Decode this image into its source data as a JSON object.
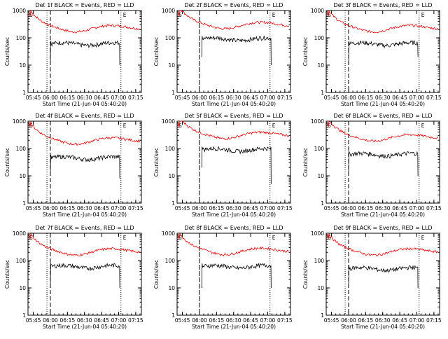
{
  "figure": {
    "xlabel": "Start Time (21-Jun-04 05:40:20)",
    "ylabel": "Counts/sec",
    "x_tick_labels": [
      "05:45",
      "06:00",
      "06:15",
      "06:30",
      "06:45",
      "07:00",
      "07:15"
    ],
    "y_tick_labels": [
      "1",
      "10",
      "100",
      "1000"
    ],
    "marker_S": "S",
    "marker_E": "E",
    "series_colors": {
      "events": "#000000",
      "lld": "#e00000"
    }
  },
  "chart_data": [
    {
      "type": "line",
      "title": "Det 1f BLACK = Events, RED = LLD",
      "xlabel": "Start Time (21-Jun-04 05:40:20)",
      "ylabel": "Counts/sec",
      "yscale": "log",
      "ylim": [
        1,
        1000
      ],
      "xlim": [
        "05:40:20",
        "07:20"
      ],
      "x_ticks": [
        "05:45",
        "06:00",
        "06:15",
        "06:30",
        "06:45",
        "07:00",
        "07:15"
      ],
      "y_ticks": [
        1,
        10,
        100,
        1000
      ],
      "markers": {
        "S": "05:40:20",
        "dashed": "06:00",
        "dotted_left": "05:57",
        "dotted_right": "07:02",
        "E": "07:02"
      },
      "series": [
        {
          "values": {
            "start": "06:00",
            "end": "07:01",
            "level": 60,
            "spike_start": 10,
            "spike_end": 10
          },
          "color": "#000000"
        },
        {
          "values": {
            "start": "05:41",
            "end": "07:19",
            "peak": 1000,
            "level": 230
          },
          "color": "#e00000"
        }
      ]
    },
    {
      "type": "line",
      "title": "Det 2f BLACK = Events, RED = LLD",
      "xlabel": "Start Time (21-Jun-04 05:40:20)",
      "ylabel": "Counts/sec",
      "yscale": "log",
      "ylim": [
        1,
        1000
      ],
      "xlim": [
        "05:40:20",
        "07:20"
      ],
      "x_ticks": [
        "05:45",
        "06:00",
        "06:15",
        "06:30",
        "06:45",
        "07:00",
        "07:15"
      ],
      "y_ticks": [
        1,
        10,
        100,
        1000
      ],
      "markers": {
        "S": "05:40:20",
        "dashed": "06:00",
        "dotted_left": "06:00",
        "dotted_right": "07:02",
        "E": "07:02"
      },
      "series": [
        {
          "values": {
            "start": "06:02",
            "end": "07:03",
            "level": 90,
            "spike_start": 20,
            "spike_end": 10
          },
          "color": "#000000"
        },
        {
          "values": {
            "start": "05:41",
            "end": "07:19",
            "peak": 1000,
            "level": 300
          },
          "color": "#e00000"
        }
      ]
    },
    {
      "type": "line",
      "title": "Det 3f BLACK = Events, RED = LLD",
      "xlabel": "Start Time (21-Jun-04 05:40:20)",
      "ylabel": "Counts/sec",
      "yscale": "log",
      "ylim": [
        1,
        1000
      ],
      "xlim": [
        "05:40:20",
        "07:20"
      ],
      "x_ticks": [
        "05:45",
        "06:00",
        "06:15",
        "06:30",
        "06:45",
        "07:00",
        "07:15"
      ],
      "y_ticks": [
        1,
        10,
        100,
        1000
      ],
      "markers": {
        "S": "05:40:20",
        "dashed": "06:00",
        "dotted_left": "05:57",
        "dotted_right": "07:02",
        "E": "07:02"
      },
      "series": [
        {
          "values": {
            "start": "06:00",
            "end": "07:01",
            "level": 60,
            "spike_start": 10,
            "spike_end": 20
          },
          "color": "#000000"
        },
        {
          "values": {
            "start": "05:41",
            "end": "07:19",
            "peak": 1000,
            "level": 230
          },
          "color": "#e00000"
        }
      ]
    },
    {
      "type": "line",
      "title": "Det 4f BLACK = Events, RED = LLD",
      "xlabel": "Start Time (21-Jun-04 05:40:20)",
      "ylabel": "Counts/sec",
      "yscale": "log",
      "ylim": [
        1,
        1000
      ],
      "xlim": [
        "05:40:20",
        "07:20"
      ],
      "x_ticks": [
        "05:45",
        "06:00",
        "06:15",
        "06:30",
        "06:45",
        "07:00",
        "07:15"
      ],
      "y_ticks": [
        1,
        10,
        100,
        1000
      ],
      "markers": {
        "S": "05:40:20",
        "dashed": "06:00",
        "dotted_left": "05:57",
        "dotted_right": "07:02",
        "E": "07:02"
      },
      "series": [
        {
          "values": {
            "start": "06:00",
            "end": "07:01",
            "level": 45,
            "spike_start": 10,
            "spike_end": 8
          },
          "color": "#000000"
        },
        {
          "values": {
            "start": "05:41",
            "end": "07:19",
            "peak": 1000,
            "level": 200
          },
          "color": "#e00000"
        }
      ]
    },
    {
      "type": "line",
      "title": "Det 5f BLACK = Events, RED = LLD",
      "xlabel": "Start Time (21-Jun-04 05:40:20)",
      "ylabel": "Counts/sec",
      "yscale": "log",
      "ylim": [
        1,
        1000
      ],
      "xlim": [
        "05:40:20",
        "07:20"
      ],
      "x_ticks": [
        "05:45",
        "06:00",
        "06:15",
        "06:30",
        "06:45",
        "07:00",
        "07:15"
      ],
      "y_ticks": [
        1,
        10,
        100,
        1000
      ],
      "markers": {
        "S": "05:40:20",
        "dashed": "06:00",
        "dotted_left": "06:00",
        "dotted_right": "07:02",
        "E": "07:02"
      },
      "series": [
        {
          "values": {
            "start": "06:02",
            "end": "07:03",
            "level": 90,
            "spike_start": 20,
            "spike_end": 5
          },
          "color": "#000000"
        },
        {
          "values": {
            "start": "05:41",
            "end": "07:19",
            "peak": 1000,
            "level": 320
          },
          "color": "#e00000"
        }
      ]
    },
    {
      "type": "line",
      "title": "Det 6f BLACK = Events, RED = LLD",
      "xlabel": "Start Time (21-Jun-04 05:40:20)",
      "ylabel": "Counts/sec",
      "yscale": "log",
      "ylim": [
        1,
        1000
      ],
      "xlim": [
        "05:40:20",
        "07:20"
      ],
      "x_ticks": [
        "05:45",
        "06:00",
        "06:15",
        "06:30",
        "06:45",
        "07:00",
        "07:15"
      ],
      "y_ticks": [
        1,
        10,
        100,
        1000
      ],
      "markers": {
        "S": "05:40:20",
        "dashed": "06:00",
        "dotted_left": "05:57",
        "dotted_right": "07:02",
        "E": "07:02"
      },
      "series": [
        {
          "values": {
            "start": "06:00",
            "end": "07:01",
            "level": 60,
            "spike_start": 10,
            "spike_end": 10
          },
          "color": "#000000"
        },
        {
          "values": {
            "start": "05:41",
            "end": "07:19",
            "peak": 1000,
            "level": 260
          },
          "color": "#e00000"
        }
      ]
    },
    {
      "type": "line",
      "title": "Det 7f BLACK = Events, RED = LLD",
      "xlabel": "Start Time (21-Jun-04 05:40:20)",
      "ylabel": "Counts/sec",
      "yscale": "log",
      "ylim": [
        1,
        1000
      ],
      "xlim": [
        "05:40:20",
        "07:20"
      ],
      "x_ticks": [
        "05:45",
        "06:00",
        "06:15",
        "06:30",
        "06:45",
        "07:00",
        "07:15"
      ],
      "y_ticks": [
        1,
        10,
        100,
        1000
      ],
      "markers": {
        "S": "05:40:20",
        "dashed": "06:00",
        "dotted_left": "05:57",
        "dotted_right": "07:02",
        "E": "07:02"
      },
      "series": [
        {
          "values": {
            "start": "06:00",
            "end": "07:01",
            "level": 60,
            "spike_start": 10,
            "spike_end": 10
          },
          "color": "#000000"
        },
        {
          "values": {
            "start": "05:41",
            "end": "07:19",
            "peak": 1000,
            "level": 220
          },
          "color": "#e00000"
        }
      ]
    },
    {
      "type": "line",
      "title": "Det 8f BLACK = Events, RED = LLD",
      "xlabel": "Start Time (21-Jun-04 05:40:20)",
      "ylabel": "Counts/sec",
      "yscale": "log",
      "ylim": [
        1,
        1000
      ],
      "xlim": [
        "05:40:20",
        "07:20"
      ],
      "x_ticks": [
        "05:45",
        "06:00",
        "06:15",
        "06:30",
        "06:45",
        "07:00",
        "07:15"
      ],
      "y_ticks": [
        1,
        10,
        100,
        1000
      ],
      "markers": {
        "S": "05:40:20",
        "dashed": "06:00",
        "dotted_left": "06:00",
        "dotted_right": "07:02",
        "E": "07:02"
      },
      "series": [
        {
          "values": {
            "start": "06:02",
            "end": "07:03",
            "level": 60,
            "spike_start": 10,
            "spike_end": 10
          },
          "color": "#000000"
        },
        {
          "values": {
            "start": "05:41",
            "end": "07:19",
            "peak": 1000,
            "level": 230
          },
          "color": "#e00000"
        }
      ]
    },
    {
      "type": "line",
      "title": "Det 9f BLACK = Events, RED = LLD",
      "xlabel": "Start Time (21-Jun-04 05:40:20)",
      "ylabel": "Counts/sec",
      "yscale": "log",
      "ylim": [
        1,
        1000
      ],
      "xlim": [
        "05:40:20",
        "07:20"
      ],
      "x_ticks": [
        "05:45",
        "06:00",
        "06:15",
        "06:30",
        "06:45",
        "07:00",
        "07:15"
      ],
      "y_ticks": [
        1,
        10,
        100,
        1000
      ],
      "markers": {
        "S": "05:40:20",
        "dashed": "06:00",
        "dotted_left": "05:57",
        "dotted_right": "07:02",
        "E": "07:02"
      },
      "series": [
        {
          "values": {
            "start": "06:00",
            "end": "07:01",
            "level": 50,
            "spike_start": 10,
            "spike_end": 10
          },
          "color": "#000000"
        },
        {
          "values": {
            "start": "05:41",
            "end": "07:19",
            "peak": 1000,
            "level": 220
          },
          "color": "#e00000"
        }
      ]
    }
  ]
}
